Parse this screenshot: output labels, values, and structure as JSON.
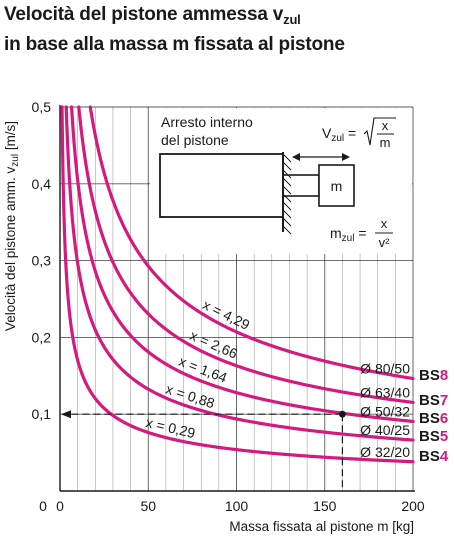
{
  "title": {
    "line1_main": "Velocità del pistone ammessa v",
    "line1_sub": "zul",
    "line2": "in base alla massa m fissata al pistone"
  },
  "colors": {
    "curve": "#d6197f",
    "axis": "#1a1a1a",
    "grid": "#222222"
  },
  "chart_data": {
    "type": "line",
    "xlabel": "Massa fissata al pistone m [kg]",
    "ylabel_main": "Velocità del pistone amm. v",
    "ylabel_sub": "zul",
    "ylabel_unit": "[m/s]",
    "xlim": [
      0,
      200
    ],
    "ylim": [
      0,
      0.5
    ],
    "x_ticks": [
      0,
      50,
      100,
      150,
      200
    ],
    "x_tick_labels": [
      "0",
      "50",
      "100",
      "150",
      "200"
    ],
    "y_ticks": [
      0.1,
      0.2,
      0.3,
      0.4,
      0.5
    ],
    "y_tick_labels": [
      "0,1",
      "0,2",
      "0,3",
      "0,4",
      "0,5"
    ],
    "grid": true,
    "formula": "v = sqrt(x / m)",
    "series": [
      {
        "x_value": 4.29,
        "label": "x = 4,29",
        "diameter": "Ø 80/50",
        "bs_prefix": "BS",
        "bs_num": "8"
      },
      {
        "x_value": 2.66,
        "label": "x = 2,66",
        "diameter": "Ø 63/40",
        "bs_prefix": "BS",
        "bs_num": "7"
      },
      {
        "x_value": 1.64,
        "label": "x = 1,64",
        "diameter": "Ø 50/32",
        "bs_prefix": "BS",
        "bs_num": "6"
      },
      {
        "x_value": 0.88,
        "label": "x = 0,88",
        "diameter": "Ø 40/25",
        "bs_prefix": "BS",
        "bs_num": "5"
      },
      {
        "x_value": 0.29,
        "label": "x = 0,29",
        "diameter": "Ø 32/20",
        "bs_prefix": "BS",
        "bs_num": "4"
      }
    ],
    "example_point": {
      "x": 160,
      "y": 0.1
    },
    "inset": {
      "caption_line1": "Arresto interno",
      "caption_line2": "del pistone",
      "mass_label": "m",
      "v_symbol": "V",
      "m_symbol": "m",
      "sub": "zul",
      "eq": "=",
      "frac_num": "x",
      "v_frac_den": "m",
      "m_frac_den": "v²"
    }
  }
}
